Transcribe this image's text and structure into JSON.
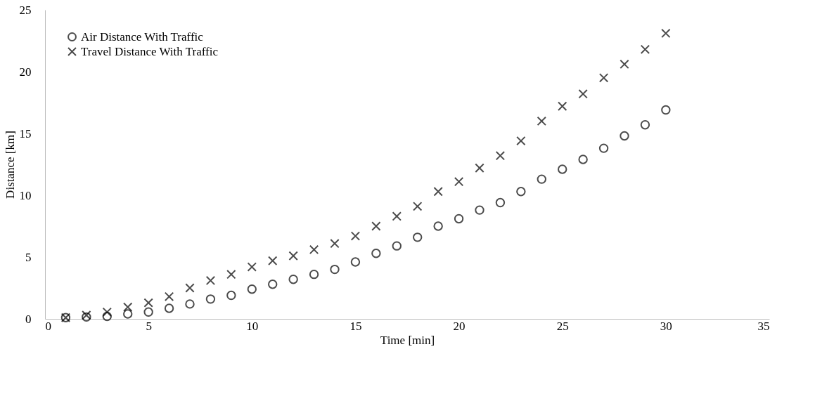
{
  "chart_data": {
    "type": "scatter",
    "xlabel": "Time [min]",
    "ylabel": "Distance [km]",
    "x": [
      1,
      2,
      3,
      4,
      5,
      6,
      7,
      8,
      9,
      10,
      11,
      12,
      13,
      14,
      15,
      16,
      17,
      18,
      19,
      20,
      21,
      22,
      23,
      24,
      25,
      26,
      27,
      28,
      29,
      30
    ],
    "series": [
      {
        "name": "Air Distance With Traffic",
        "color": "#000000",
        "marker": "circle",
        "values": [
          0.1,
          0.15,
          0.2,
          0.4,
          0.55,
          0.85,
          1.2,
          1.6,
          1.9,
          2.4,
          2.8,
          3.2,
          3.6,
          4.0,
          4.6,
          5.3,
          5.9,
          6.6,
          7.5,
          8.1,
          8.8,
          9.4,
          10.3,
          11.3,
          12.1,
          12.9,
          13.8,
          14.8,
          15.7,
          16.9
        ]
      },
      {
        "name": "Travel Distance With Traffic",
        "color": "#000000",
        "marker": "cross",
        "values": [
          0.1,
          0.3,
          0.55,
          0.95,
          1.3,
          1.8,
          2.5,
          3.1,
          3.6,
          4.2,
          4.7,
          5.1,
          5.6,
          6.1,
          6.7,
          7.5,
          8.3,
          9.1,
          10.3,
          11.1,
          12.2,
          13.2,
          14.4,
          16.0,
          17.2,
          18.2,
          19.5,
          20.6,
          21.8,
          23.1
        ]
      }
    ],
    "xlim": [
      0,
      35
    ],
    "xticks": [
      0,
      5,
      10,
      15,
      20,
      25,
      30,
      35
    ],
    "ylim": [
      0,
      25
    ],
    "yticks": [
      0,
      5,
      10,
      15,
      20,
      25
    ],
    "grid": false,
    "legend": "top left"
  }
}
